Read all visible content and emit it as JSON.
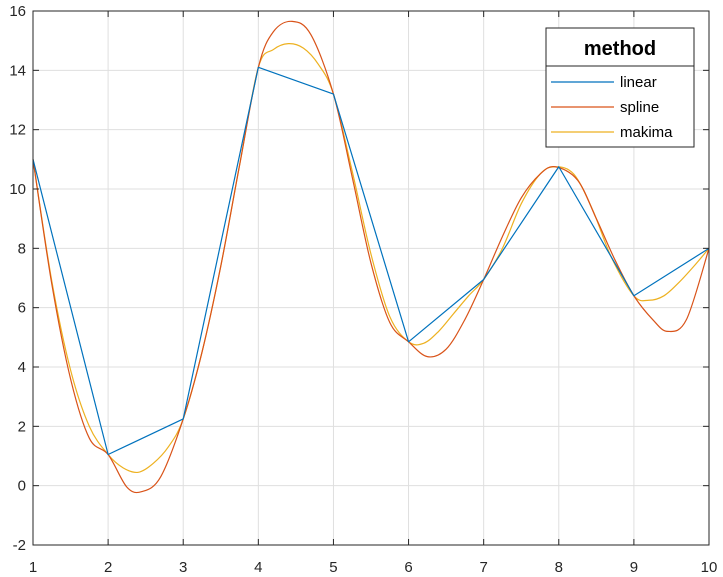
{
  "chart_data": {
    "type": "line",
    "title": "",
    "xlabel": "",
    "ylabel": "",
    "xlim": [
      1,
      10
    ],
    "ylim": [
      -2,
      16
    ],
    "xticks": [
      1,
      2,
      3,
      4,
      5,
      6,
      7,
      8,
      9,
      10
    ],
    "yticks": [
      -2,
      0,
      2,
      4,
      6,
      8,
      10,
      12,
      14,
      16
    ],
    "grid": true,
    "legend": {
      "title": "method",
      "position": "top-right"
    },
    "series": [
      {
        "name": "linear",
        "color": "#0072BD",
        "x": [
          1,
          2,
          3,
          4,
          5,
          6,
          7,
          8,
          9,
          10
        ],
        "y": [
          11.0,
          1.05,
          2.25,
          14.1,
          13.2,
          4.85,
          6.95,
          10.75,
          6.4,
          8.0
        ]
      },
      {
        "name": "spline",
        "color": "#D95319",
        "x": [
          1,
          1.25,
          1.5,
          1.75,
          2,
          2.25,
          2.45,
          2.7,
          3,
          3.25,
          3.5,
          3.75,
          4,
          4.2,
          4.45,
          4.7,
          5,
          5.25,
          5.5,
          5.75,
          6,
          6.25,
          6.5,
          6.75,
          7,
          7.25,
          7.5,
          7.75,
          7.95,
          8.25,
          8.5,
          8.75,
          9,
          9.25,
          9.45,
          9.7,
          10
        ],
        "y": [
          11.0,
          6.8,
          3.6,
          1.6,
          1.05,
          -0.05,
          -0.2,
          0.3,
          2.25,
          4.5,
          7.4,
          10.8,
          14.1,
          15.3,
          15.65,
          15.2,
          13.2,
          10.4,
          7.5,
          5.5,
          4.85,
          4.35,
          4.6,
          5.6,
          6.95,
          8.4,
          9.7,
          10.5,
          10.75,
          10.3,
          9.0,
          7.6,
          6.4,
          5.6,
          5.2,
          5.6,
          8.0
        ]
      },
      {
        "name": "makima",
        "color": "#EDB120",
        "x": [
          1,
          1.25,
          1.5,
          1.75,
          2,
          2.2,
          2.4,
          2.6,
          2.8,
          3,
          3.25,
          3.5,
          3.75,
          4,
          4.2,
          4.4,
          4.6,
          4.8,
          5,
          5.25,
          5.5,
          5.75,
          6,
          6.2,
          6.4,
          6.6,
          6.8,
          7,
          7.25,
          7.5,
          7.75,
          7.95,
          8.2,
          8.45,
          8.7,
          9,
          9.2,
          9.4,
          9.6,
          9.8,
          10
        ],
        "y": [
          11.0,
          6.9,
          3.9,
          2.0,
          1.05,
          0.6,
          0.45,
          0.75,
          1.3,
          2.25,
          4.5,
          7.4,
          10.8,
          14.1,
          14.7,
          14.9,
          14.75,
          14.2,
          13.2,
          10.6,
          7.8,
          5.7,
          4.85,
          4.8,
          5.2,
          5.8,
          6.4,
          6.95,
          8.0,
          9.5,
          10.5,
          10.75,
          10.5,
          9.3,
          7.7,
          6.4,
          6.25,
          6.4,
          6.85,
          7.4,
          8.0
        ]
      }
    ]
  }
}
